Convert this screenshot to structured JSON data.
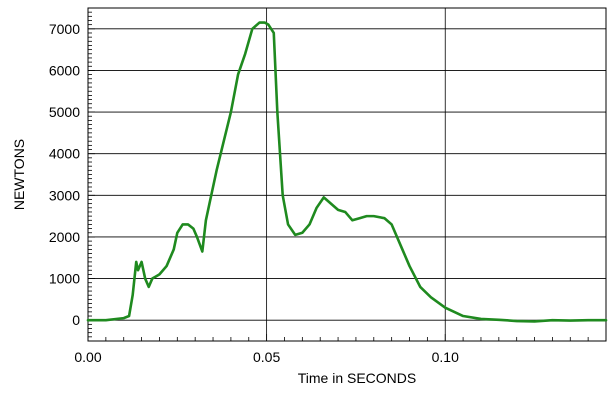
{
  "chart_data": {
    "type": "line",
    "title": "",
    "xlabel": "Time in SECONDS",
    "ylabel": "NEWTONS",
    "xlim": [
      0.0,
      0.145
    ],
    "ylim": [
      -500,
      7500
    ],
    "x_ticks": [
      0.0,
      0.05,
      0.1
    ],
    "x_tick_labels": [
      "0.00",
      "0.05",
      "0.10"
    ],
    "y_ticks": [
      0,
      1000,
      2000,
      3000,
      4000,
      5000,
      6000,
      7000
    ],
    "y_tick_labels": [
      "0",
      "1000",
      "2000",
      "3000",
      "4000",
      "5000",
      "6000",
      "7000"
    ],
    "grid": true,
    "series_color": "#1f8a1f",
    "series": [
      {
        "x": [
          0.0,
          0.005,
          0.01,
          0.0115,
          0.0125,
          0.0135,
          0.014,
          0.015,
          0.016,
          0.017,
          0.018,
          0.019,
          0.02,
          0.022,
          0.024,
          0.025,
          0.0265,
          0.028,
          0.0295,
          0.0305,
          0.032,
          0.033,
          0.034,
          0.036,
          0.038,
          0.04,
          0.042,
          0.044,
          0.046,
          0.048,
          0.0495,
          0.0505,
          0.052,
          0.053,
          0.0545,
          0.056,
          0.058,
          0.06,
          0.062,
          0.064,
          0.066,
          0.068,
          0.07,
          0.072,
          0.074,
          0.076,
          0.078,
          0.08,
          0.083,
          0.085,
          0.088,
          0.09,
          0.093,
          0.096,
          0.1,
          0.105,
          0.11,
          0.115,
          0.12,
          0.125,
          0.13,
          0.135,
          0.14,
          0.145
        ],
        "y": [
          0,
          0,
          50,
          100,
          600,
          1400,
          1200,
          1400,
          1000,
          800,
          1000,
          1050,
          1100,
          1300,
          1700,
          2100,
          2300,
          2300,
          2200,
          2000,
          1650,
          2400,
          2800,
          3600,
          4300,
          5000,
          5900,
          6400,
          7000,
          7150,
          7150,
          7100,
          6900,
          5000,
          3000,
          2300,
          2050,
          2100,
          2300,
          2700,
          2950,
          2800,
          2650,
          2600,
          2400,
          2450,
          2500,
          2500,
          2450,
          2300,
          1700,
          1300,
          800,
          550,
          300,
          100,
          30,
          10,
          -20,
          -30,
          0,
          -10,
          0,
          0
        ]
      }
    ]
  }
}
